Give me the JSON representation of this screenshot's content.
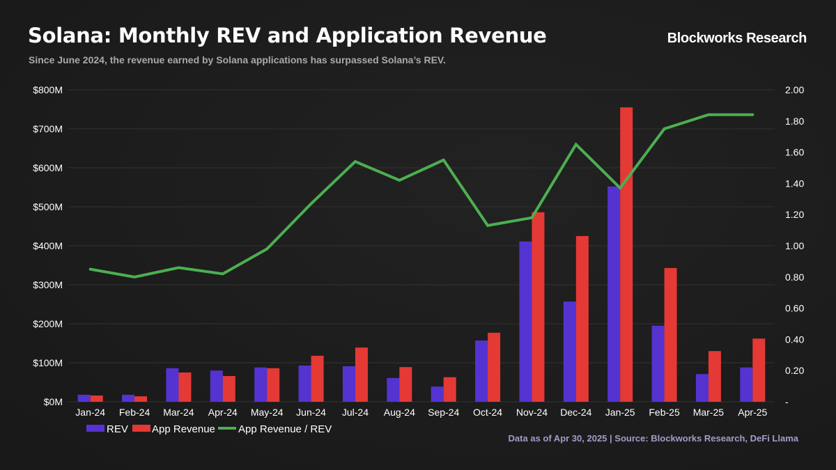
{
  "header": {
    "title": "Solana: Monthly REV and Application Revenue",
    "subtitle": "Since June 2024, the revenue earned by Solana applications has surpassed Solana’s REV.",
    "brand": "Blockworks Research"
  },
  "footer": {
    "source": "Data as of Apr 30, 2025 | Source: Blockworks Research, DeFi Llama"
  },
  "colors": {
    "rev": "#5533d1",
    "app_revenue": "#e53935",
    "ratio": "#4caf50",
    "grid": "#2f2f2f",
    "background": "#1c1c1c"
  },
  "chart_data": {
    "type": "bar",
    "title": "Solana: Monthly REV and Application Revenue",
    "categories": [
      "Jan-24",
      "Feb-24",
      "Mar-24",
      "Apr-24",
      "May-24",
      "Jun-24",
      "Jul-24",
      "Aug-24",
      "Sep-24",
      "Oct-24",
      "Nov-24",
      "Dec-24",
      "Jan-25",
      "Feb-25",
      "Mar-25",
      "Apr-25"
    ],
    "series": [
      {
        "name": "REV",
        "type": "bar",
        "axis": "left",
        "unit": "USD millions",
        "values": [
          18,
          18,
          86,
          80,
          88,
          93,
          91,
          61,
          39,
          157,
          411,
          257,
          552,
          195,
          71,
          88
        ]
      },
      {
        "name": "App Revenue",
        "type": "bar",
        "axis": "left",
        "unit": "USD millions",
        "values": [
          16,
          14,
          75,
          66,
          86,
          118,
          139,
          89,
          63,
          177,
          486,
          425,
          755,
          343,
          130,
          162
        ]
      },
      {
        "name": "App Revenue / REV",
        "type": "line",
        "axis": "right",
        "values": [
          0.85,
          0.8,
          0.86,
          0.82,
          0.98,
          1.27,
          1.54,
          1.42,
          1.55,
          1.13,
          1.18,
          1.65,
          1.37,
          1.75,
          1.84,
          1.84
        ]
      }
    ],
    "y_left": {
      "label": "",
      "range": [
        0,
        800
      ],
      "ticks": [
        0,
        100,
        200,
        300,
        400,
        500,
        600,
        700,
        800
      ],
      "tick_labels": [
        "$0M",
        "$100M",
        "$200M",
        "$300M",
        "$400M",
        "$500M",
        "$600M",
        "$700M",
        "$800M"
      ]
    },
    "y_right": {
      "label": "",
      "range": [
        0,
        2.0
      ],
      "ticks": [
        0,
        0.2,
        0.4,
        0.6,
        0.8,
        1.0,
        1.2,
        1.4,
        1.6,
        1.8,
        2.0
      ],
      "tick_labels": [
        "-",
        "0.20",
        "0.40",
        "0.60",
        "0.80",
        "1.00",
        "1.20",
        "1.40",
        "1.60",
        "1.80",
        "2.00"
      ]
    },
    "xlabel": "",
    "grid": true,
    "legend": {
      "position": "bottom-left",
      "entries": [
        "REV",
        "App Revenue",
        "App Revenue / REV"
      ]
    }
  }
}
